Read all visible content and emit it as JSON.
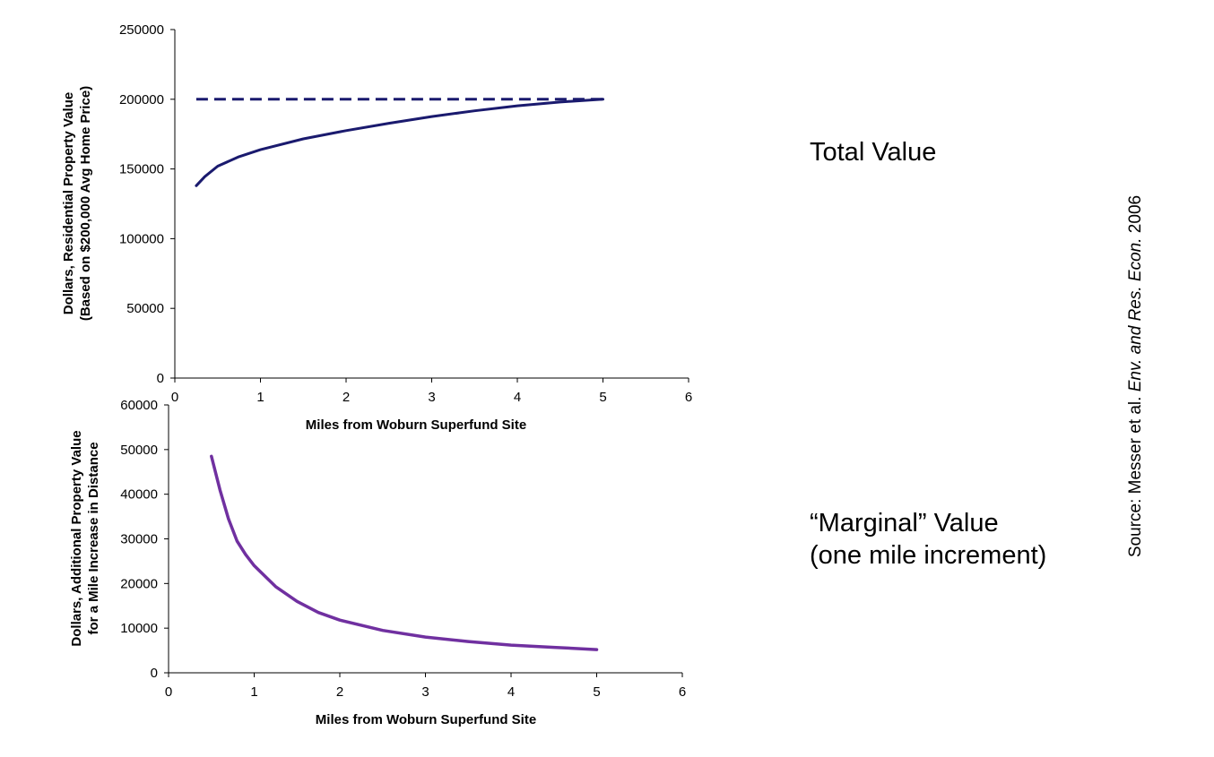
{
  "colors": {
    "total": "#1a1a6e",
    "marginal": "#7030a0",
    "axis": "#000000"
  },
  "captions": {
    "total": "Total Value",
    "marginal_line1": "“Marginal” Value",
    "marginal_line2": "(one mile increment)"
  },
  "source": {
    "prefix": "Source: Messer et al.",
    "journal": "Env. and Res. Econ.",
    "year": "2006"
  },
  "chart_data": [
    {
      "type": "line",
      "title": "",
      "xlabel": "Miles from Woburn Superfund Site",
      "ylabel_lines": [
        "Dollars, Residential Property Value",
        "(Based on $200,000 Avg Home Price)"
      ],
      "xlim": [
        0,
        6
      ],
      "ylim": [
        0,
        250000
      ],
      "xticks": [
        0,
        1,
        2,
        3,
        4,
        5,
        6
      ],
      "yticks": [
        0,
        50000,
        100000,
        150000,
        200000,
        250000
      ],
      "xtick_labels": [
        "0",
        "1",
        "2",
        "3",
        "4",
        "5",
        "6"
      ],
      "ytick_labels": [
        "0",
        "50000",
        "100000",
        "150000",
        "200000",
        "250000"
      ],
      "grid": false,
      "series": [
        {
          "style": "dashed",
          "x": [
            0.25,
            5.0
          ],
          "y": [
            200000,
            200000
          ]
        },
        {
          "style": "solid",
          "x": [
            0.25,
            0.35,
            0.5,
            0.75,
            1.0,
            1.5,
            2.0,
            2.5,
            3.0,
            3.5,
            4.0,
            4.5,
            5.0
          ],
          "y": [
            138000,
            144500,
            152000,
            158800,
            163800,
            171600,
            177500,
            182800,
            187600,
            191700,
            195300,
            198000,
            200000
          ]
        }
      ]
    },
    {
      "type": "line",
      "title": "",
      "xlabel": "Miles from Woburn Superfund Site",
      "ylabel_lines": [
        "Dollars, Additional Property Value",
        "for a  Mile Increase in Distance"
      ],
      "xlim": [
        0,
        6
      ],
      "ylim": [
        0,
        60000
      ],
      "xticks": [
        0,
        1,
        2,
        3,
        4,
        5,
        6
      ],
      "yticks": [
        0,
        10000,
        20000,
        30000,
        40000,
        50000,
        60000
      ],
      "xtick_labels": [
        "0",
        "1",
        "2",
        "3",
        "4",
        "5",
        "6"
      ],
      "ytick_labels": [
        "0",
        "10000",
        "20000",
        "30000",
        "40000",
        "50000",
        "60000"
      ],
      "grid": false,
      "series": [
        {
          "style": "solid",
          "x": [
            0.5,
            0.6,
            0.7,
            0.8,
            0.9,
            1.0,
            1.25,
            1.5,
            1.75,
            2.0,
            2.5,
            3.0,
            3.5,
            4.0,
            4.5,
            5.0
          ],
          "y": [
            48500,
            41000,
            34500,
            29500,
            26500,
            24000,
            19300,
            16000,
            13500,
            11800,
            9500,
            8000,
            7000,
            6200,
            5700,
            5200
          ]
        }
      ]
    }
  ]
}
